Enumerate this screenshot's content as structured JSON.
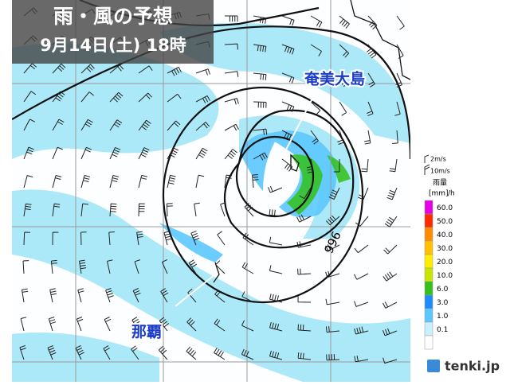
{
  "header": {
    "title": "雨・風の予想",
    "subtitle": "9月14日(土) 18時"
  },
  "map": {
    "labels": [
      "奄美大島",
      "那覇"
    ],
    "isobar_label": "996"
  },
  "legend": {
    "wind": [
      "2m/s",
      "10m/s"
    ],
    "title": "雨量",
    "unit": "[mm]",
    "per": "/h",
    "items": [
      {
        "label": "60.0",
        "color": "#e600e6"
      },
      {
        "label": "50.0",
        "color": "#ff2a00"
      },
      {
        "label": "40.0",
        "color": "#ff8c00"
      },
      {
        "label": "30.0",
        "color": "#ffc000"
      },
      {
        "label": "20.0",
        "color": "#ffee00"
      },
      {
        "label": "10.0",
        "color": "#c8e600"
      },
      {
        "label": "6.0",
        "color": "#33c11a"
      },
      {
        "label": "3.0",
        "color": "#1e8cff"
      },
      {
        "label": "1.0",
        "color": "#5cc8ff"
      },
      {
        "label": "0.1",
        "color": "#c8f0ff"
      }
    ]
  },
  "logo": "tenki.jp"
}
